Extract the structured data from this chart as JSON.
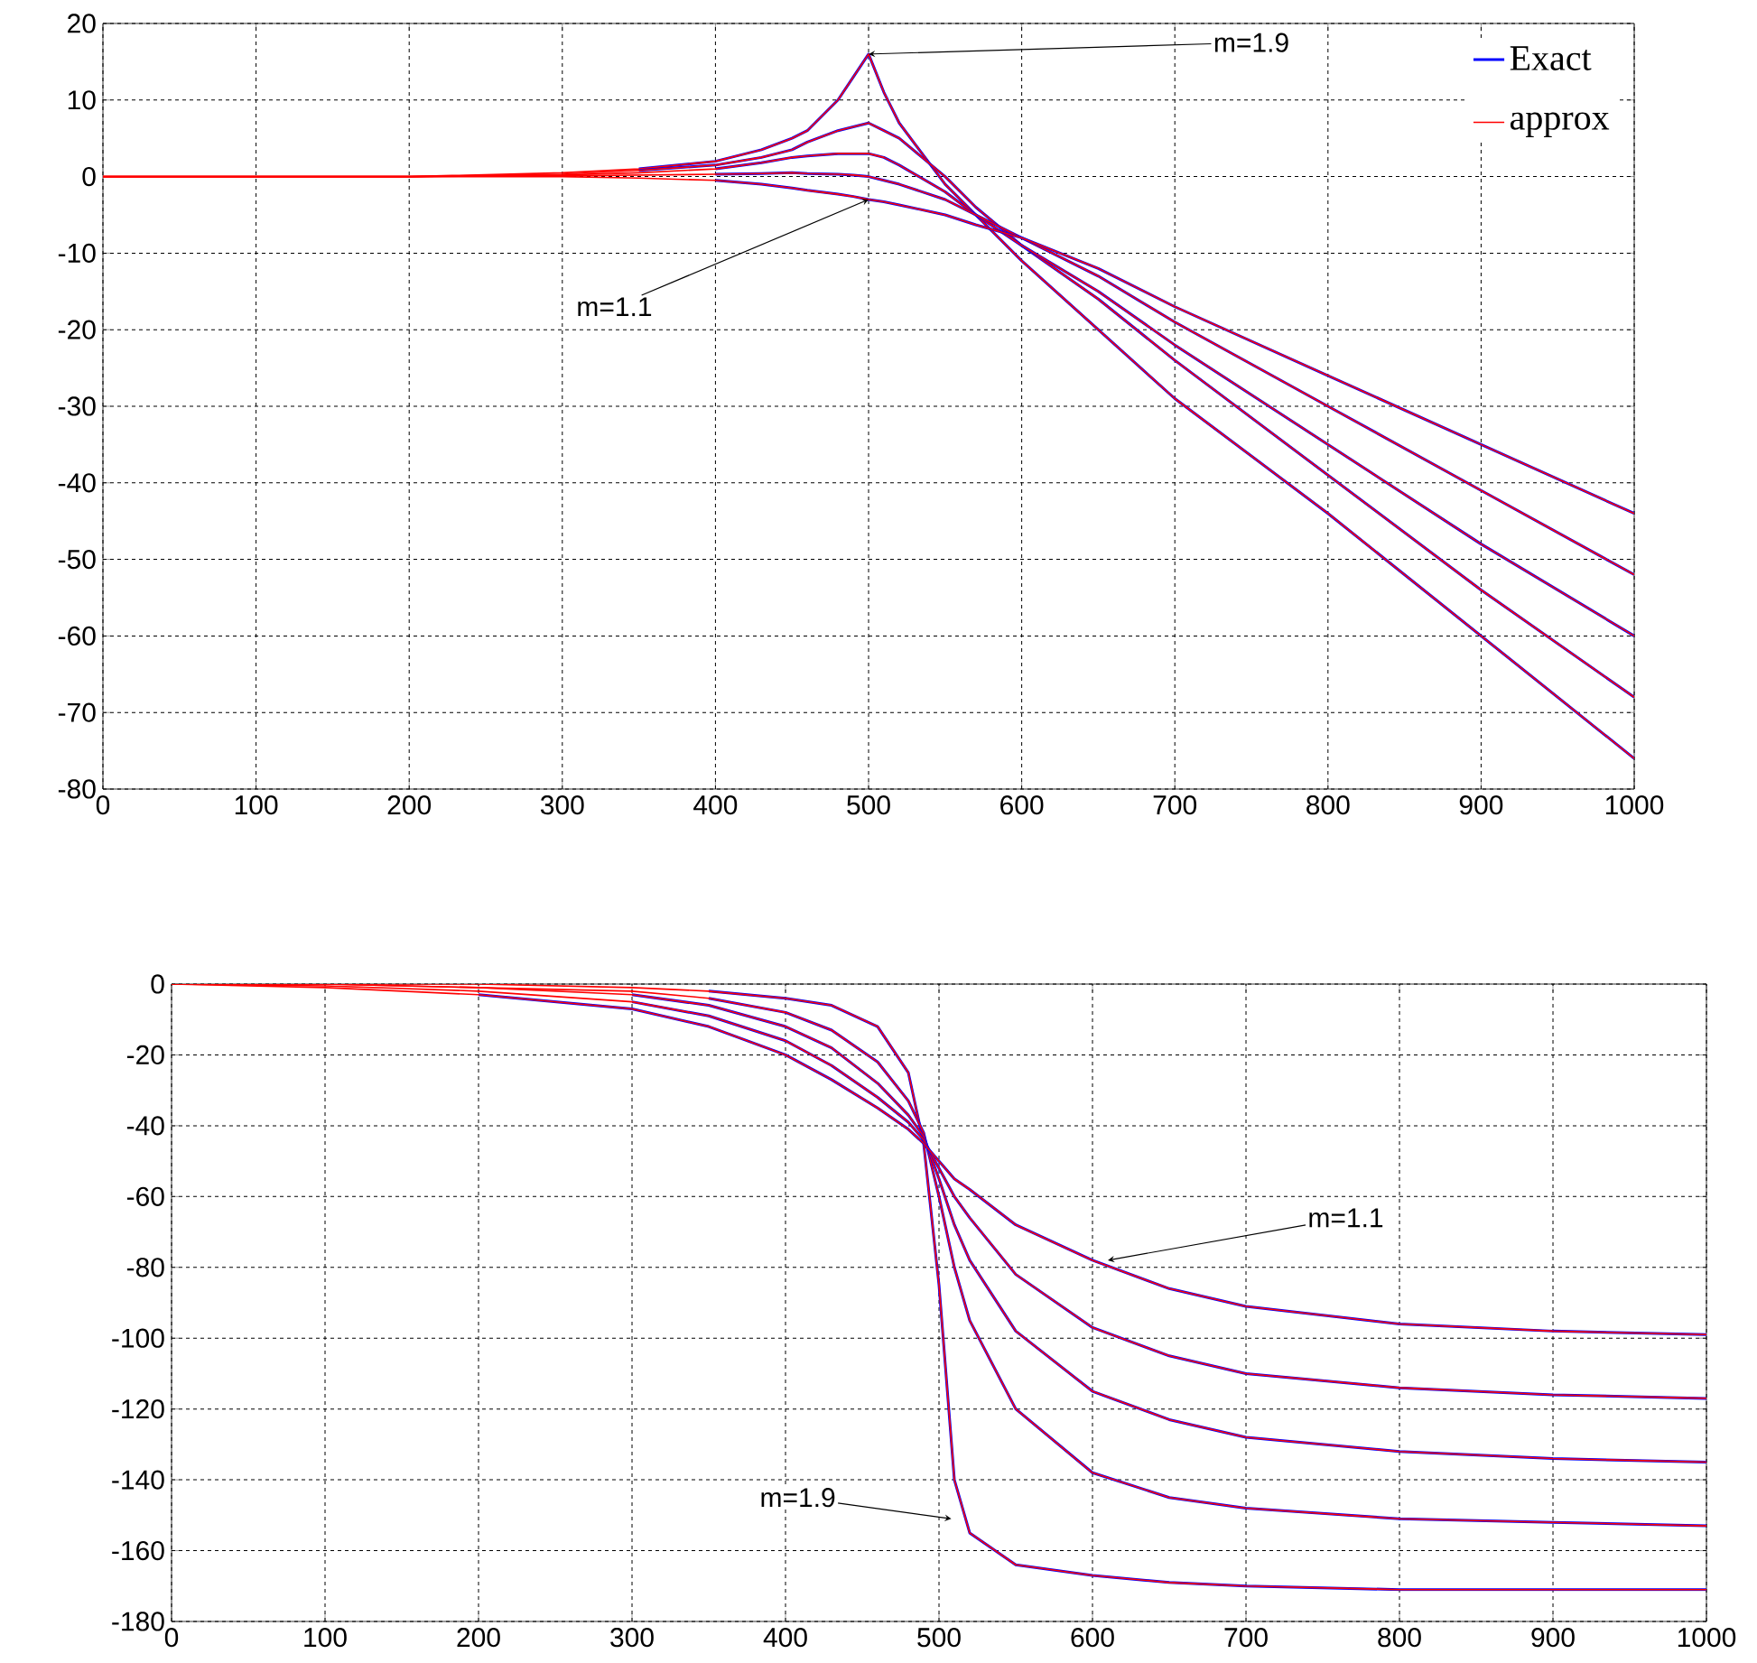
{
  "chart_data": [
    {
      "type": "line",
      "x": [
        0,
        200,
        300,
        350,
        400,
        430,
        450,
        460,
        480,
        490,
        500,
        510,
        520,
        550,
        570,
        600,
        650,
        700,
        800,
        900,
        1000
      ],
      "series": [
        {
          "name": "Exact",
          "color": "#0000ff",
          "values": [
            null,
            null,
            null,
            1,
            2,
            3.5,
            5,
            6,
            10,
            13,
            16,
            11,
            7,
            -1,
            -5,
            -11,
            -20,
            -29,
            -44,
            -60,
            -76
          ]
        },
        {
          "name": "approx",
          "color": "#ff0000",
          "values": [
            0,
            0,
            0.5,
            1,
            2,
            3.5,
            5,
            6,
            10,
            13,
            16,
            11,
            7,
            -1,
            -5,
            -11,
            -20,
            -29,
            -44,
            -60,
            -76
          ]
        },
        {
          "color": "#0000ff",
          "values": [
            null,
            null,
            null,
            0.8,
            1.5,
            2.5,
            3.5,
            4.5,
            6,
            6.5,
            7,
            6,
            5,
            0,
            -4,
            -9,
            -16,
            -24,
            -39,
            -54,
            -68
          ]
        },
        {
          "color": "#ff0000",
          "values": [
            0,
            0,
            0.3,
            0.8,
            1.5,
            2.5,
            3.5,
            4.5,
            6,
            6.5,
            7,
            6,
            5,
            0,
            -4,
            -9,
            -16,
            -24,
            -39,
            -54,
            -68
          ]
        },
        {
          "color": "#0000ff",
          "values": [
            null,
            null,
            null,
            null,
            1,
            1.8,
            2.5,
            2.7,
            3,
            3,
            3,
            2.5,
            1.5,
            -2,
            -5,
            -9,
            -15,
            -22,
            -35,
            -48,
            -60
          ]
        },
        {
          "color": "#ff0000",
          "values": [
            0,
            0,
            0.2,
            0.5,
            1,
            1.8,
            2.5,
            2.7,
            3,
            3,
            3,
            2.5,
            1.5,
            -2,
            -5,
            -9,
            -15,
            -22,
            -35,
            -48,
            -60
          ]
        },
        {
          "color": "#0000ff",
          "values": [
            null,
            null,
            null,
            null,
            0.3,
            0.4,
            0.5,
            0.4,
            0.3,
            0.2,
            0,
            -0.5,
            -1,
            -3,
            -5,
            -8,
            -13,
            -19,
            -30,
            -41,
            -52
          ]
        },
        {
          "color": "#ff0000",
          "values": [
            0,
            0,
            0.1,
            0.2,
            0.3,
            0.4,
            0.5,
            0.4,
            0.3,
            0.2,
            0,
            -0.5,
            -1,
            -3,
            -5,
            -8,
            -13,
            -19,
            -30,
            -41,
            -52
          ]
        },
        {
          "color": "#0000ff",
          "values": [
            null,
            null,
            null,
            null,
            -0.5,
            -1,
            -1.5,
            -1.8,
            -2.3,
            -2.6,
            -3,
            -3.3,
            -3.7,
            -5,
            -6.3,
            -8,
            -12,
            -17,
            -26,
            -35,
            -44
          ]
        },
        {
          "color": "#ff0000",
          "values": [
            0,
            0,
            0,
            -0.2,
            -0.5,
            -1,
            -1.5,
            -1.8,
            -2.3,
            -2.6,
            -3,
            -3.3,
            -3.7,
            -5,
            -6.3,
            -8,
            -12,
            -17,
            -26,
            -35,
            -44
          ]
        }
      ],
      "xlim": [
        0,
        1000
      ],
      "ylim": [
        -80,
        20
      ],
      "xticks": [
        0,
        100,
        200,
        300,
        400,
        500,
        600,
        700,
        800,
        900,
        1000
      ],
      "yticks": [
        -80,
        -70,
        -60,
        -50,
        -40,
        -30,
        -20,
        -10,
        0,
        10,
        20
      ],
      "grid": true,
      "legend": "top right",
      "annotations": [
        {
          "text": "m=1.9",
          "x": 500,
          "y": 16
        },
        {
          "text": "m=1.1",
          "x": 500,
          "y": -3
        }
      ]
    },
    {
      "type": "line",
      "x": [
        0,
        100,
        200,
        300,
        350,
        400,
        430,
        460,
        480,
        490,
        500,
        510,
        520,
        550,
        600,
        650,
        700,
        800,
        900,
        1000
      ],
      "series": [
        {
          "color": "#0000ff",
          "values": [
            null,
            null,
            null,
            null,
            -2,
            -4,
            -6,
            -12,
            -25,
            -45,
            -85,
            -140,
            -155,
            -164,
            -167,
            -169,
            -170,
            -171,
            -171,
            -171
          ]
        },
        {
          "color": "#ff0000",
          "values": [
            0,
            0,
            0,
            -1,
            -2,
            -4,
            -6,
            -12,
            -25,
            -45,
            -85,
            -140,
            -155,
            -164,
            -167,
            -169,
            -170,
            -171,
            -171,
            -171
          ]
        },
        {
          "color": "#0000ff",
          "values": [
            null,
            null,
            null,
            null,
            -4,
            -8,
            -13,
            -22,
            -33,
            -42,
            -60,
            -80,
            -95,
            -120,
            -138,
            -145,
            -148,
            -151,
            -152,
            -153
          ]
        },
        {
          "color": "#ff0000",
          "values": [
            0,
            0,
            -1,
            -2,
            -4,
            -8,
            -13,
            -22,
            -33,
            -42,
            -60,
            -80,
            -95,
            -120,
            -138,
            -145,
            -148,
            -151,
            -152,
            -153
          ]
        },
        {
          "color": "#0000ff",
          "values": [
            null,
            null,
            null,
            -3,
            -6,
            -12,
            -18,
            -28,
            -37,
            -43,
            -55,
            -68,
            -78,
            -98,
            -115,
            -123,
            -128,
            -132,
            -134,
            -135
          ]
        },
        {
          "color": "#ff0000",
          "values": [
            0,
            0,
            -1,
            -3,
            -6,
            -12,
            -18,
            -28,
            -37,
            -43,
            -55,
            -68,
            -78,
            -98,
            -115,
            -123,
            -128,
            -132,
            -134,
            -135
          ]
        },
        {
          "color": "#0000ff",
          "values": [
            null,
            null,
            null,
            -5,
            -9,
            -16,
            -23,
            -32,
            -39,
            -44,
            -52,
            -60,
            -66,
            -82,
            -97,
            -105,
            -110,
            -114,
            -116,
            -117
          ]
        },
        {
          "color": "#ff0000",
          "values": [
            0,
            -0.5,
            -2,
            -5,
            -9,
            -16,
            -23,
            -32,
            -39,
            -44,
            -52,
            -60,
            -66,
            -82,
            -97,
            -105,
            -110,
            -114,
            -116,
            -117
          ]
        },
        {
          "color": "#0000ff",
          "values": [
            null,
            null,
            -3,
            -7,
            -12,
            -20,
            -27,
            -35,
            -41,
            -45,
            -50,
            -55,
            -58,
            -68,
            -78,
            -86,
            -91,
            -96,
            -98,
            -99
          ]
        },
        {
          "color": "#ff0000",
          "values": [
            0,
            -1,
            -3,
            -7,
            -12,
            -20,
            -27,
            -35,
            -41,
            -45,
            -50,
            -55,
            -58,
            -68,
            -78,
            -86,
            -91,
            -96,
            -98,
            -99
          ]
        }
      ],
      "xlim": [
        0,
        1000
      ],
      "ylim": [
        -180,
        0
      ],
      "xticks": [
        0,
        100,
        200,
        300,
        400,
        500,
        600,
        700,
        800,
        900,
        1000
      ],
      "yticks": [
        -180,
        -160,
        -140,
        -120,
        -100,
        -80,
        -60,
        -40,
        -20,
        0
      ],
      "grid": true,
      "annotations": [
        {
          "text": "m=1.1",
          "x": 610,
          "y": -78
        },
        {
          "text": "m=1.9",
          "x": 508,
          "y": -151
        }
      ]
    }
  ]
}
